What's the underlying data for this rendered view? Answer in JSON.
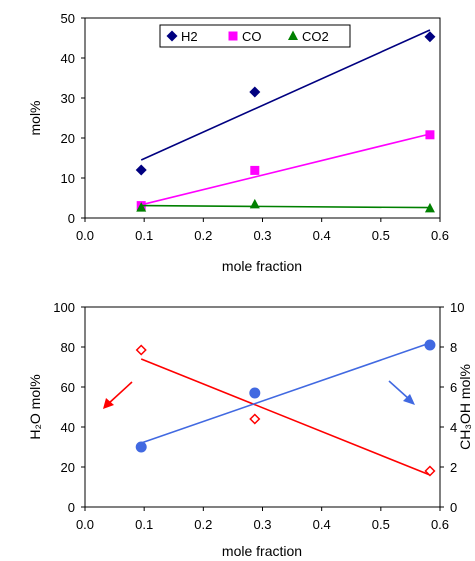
{
  "chart_data": [
    {
      "type": "scatter",
      "xlabel": "mole fraction",
      "ylabel": "mol%",
      "xlim": [
        0.0,
        0.6
      ],
      "ylim": [
        0,
        50
      ],
      "xticks": [
        "0.0",
        "0.1",
        "0.2",
        "0.3",
        "0.4",
        "0.5",
        "0.6"
      ],
      "yticks": [
        "0",
        "10",
        "20",
        "30",
        "40",
        "50"
      ],
      "legend_position": "top-center",
      "series": [
        {
          "name": "H2",
          "marker": "diamond",
          "color": "#000080",
          "x": [
            0.095,
            0.287,
            0.583
          ],
          "y": [
            12,
            31.5,
            45.3
          ],
          "trendline": {
            "x": [
              0.095,
              0.583
            ],
            "y": [
              14.5,
              47
            ]
          }
        },
        {
          "name": "CO",
          "marker": "square",
          "color": "#FF00FF",
          "x": [
            0.095,
            0.287,
            0.583
          ],
          "y": [
            3.1,
            11.9,
            20.8
          ],
          "trendline": {
            "x": [
              0.095,
              0.583
            ],
            "y": [
              3.3,
              21
            ]
          }
        },
        {
          "name": "CO2",
          "marker": "triangle",
          "color": "#008000",
          "x": [
            0.095,
            0.287,
            0.583
          ],
          "y": [
            2.6,
            3.4,
            2.4
          ],
          "trendline": {
            "x": [
              0.095,
              0.583
            ],
            "y": [
              3.1,
              2.6
            ]
          }
        }
      ]
    },
    {
      "type": "scatter",
      "xlabel": "mole fraction",
      "ylabel": "H₂O mol%",
      "ylabel2": "CH₃OH mol%",
      "xlim": [
        0.0,
        0.6
      ],
      "ylim": [
        0,
        100
      ],
      "ylim2": [
        0,
        10
      ],
      "xticks": [
        "0.0",
        "0.1",
        "0.2",
        "0.3",
        "0.4",
        "0.5",
        "0.6"
      ],
      "yticks": [
        "0",
        "20",
        "40",
        "60",
        "80",
        "100"
      ],
      "yticks2": [
        "0",
        "2",
        "4",
        "6",
        "8",
        "10"
      ],
      "series": [
        {
          "marker": "open-diamond",
          "color": "#FF0000",
          "axis": "left",
          "x": [
            0.095,
            0.287,
            0.583
          ],
          "y": [
            78.5,
            44,
            18
          ],
          "trendline": {
            "x": [
              0.095,
              0.583
            ],
            "y": [
              74,
              16
            ]
          }
        },
        {
          "marker": "circle",
          "color": "#4169E1",
          "axis": "right",
          "x": [
            0.095,
            0.287,
            0.583
          ],
          "y": [
            3.0,
            5.7,
            8.1
          ],
          "trendline": {
            "x": [
              0.095,
              0.583
            ],
            "y": [
              3.2,
              8.2
            ]
          }
        }
      ]
    }
  ]
}
